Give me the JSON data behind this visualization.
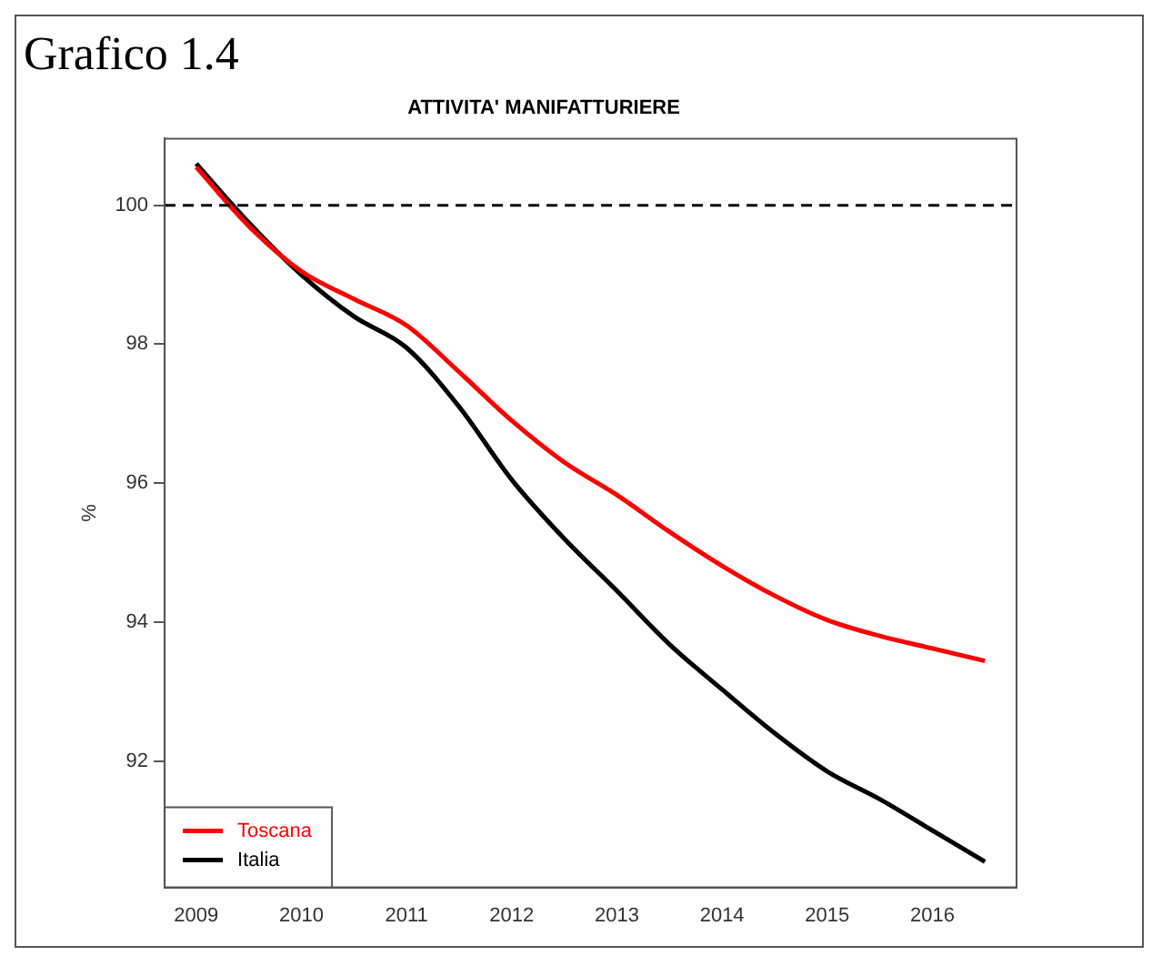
{
  "chart_data": {
    "type": "line",
    "title": "ATTIVITA' MANIFATTURIERE",
    "subtitle": "Grafico 1.4",
    "ylabel": "%",
    "x": [
      2009,
      2009.5,
      2010,
      2010.5,
      2011,
      2011.5,
      2012,
      2012.5,
      2013,
      2013.5,
      2014,
      2014.5,
      2015,
      2015.5,
      2016,
      2016.5
    ],
    "series": [
      {
        "name": "Toscana",
        "color": "#ff0000",
        "values": [
          100.55,
          99.7,
          99.05,
          98.65,
          98.27,
          97.6,
          96.9,
          96.3,
          95.83,
          95.3,
          94.81,
          94.38,
          94.03,
          93.8,
          93.62,
          93.44
        ]
      },
      {
        "name": "Italia",
        "color": "#000000",
        "values": [
          100.6,
          99.75,
          99.0,
          98.4,
          97.95,
          97.1,
          96.05,
          95.2,
          94.45,
          93.68,
          93.03,
          92.4,
          91.85,
          91.45,
          91.0,
          90.55
        ]
      }
    ],
    "xlim": [
      2008.7,
      2016.8
    ],
    "xticks": [
      2009,
      2010,
      2011,
      2012,
      2013,
      2014,
      2015,
      2016
    ],
    "ylim": [
      90.18,
      100.96
    ],
    "yticks": [
      92,
      94,
      96,
      98,
      100
    ],
    "ref_lines": [
      {
        "axis": "y",
        "value": 100,
        "line_style": "dashed",
        "color": "#000000"
      }
    ],
    "grid": false,
    "legend": "bottom left",
    "marker": "none",
    "line_style": "solid"
  }
}
